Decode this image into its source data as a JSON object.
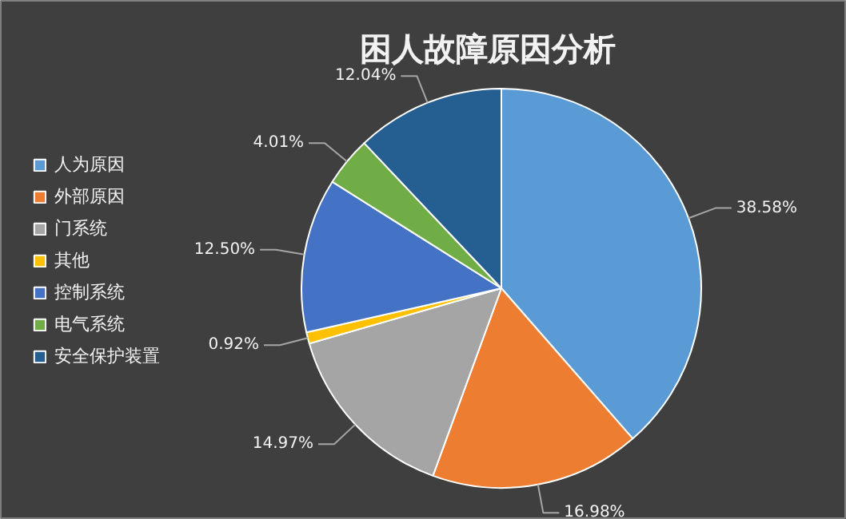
{
  "chart_data": {
    "type": "pie",
    "title": "困人故障原因分析",
    "categories": [
      "人为原因",
      "外部原因",
      "门系统",
      "其他",
      "控制系统",
      "电气系统",
      "安全保护装置"
    ],
    "values": [
      38.58,
      16.98,
      14.97,
      0.92,
      12.5,
      4.01,
      12.04
    ],
    "value_labels": [
      "38.58%",
      "16.98%",
      "14.97%",
      "0.92%",
      "12.50%",
      "4.01%",
      "12.04%"
    ],
    "colors": [
      "#5b9bd5",
      "#ed7d31",
      "#a5a5a5",
      "#ffc000",
      "#4472c4",
      "#70ad47",
      "#255e91"
    ],
    "legend": "left"
  }
}
